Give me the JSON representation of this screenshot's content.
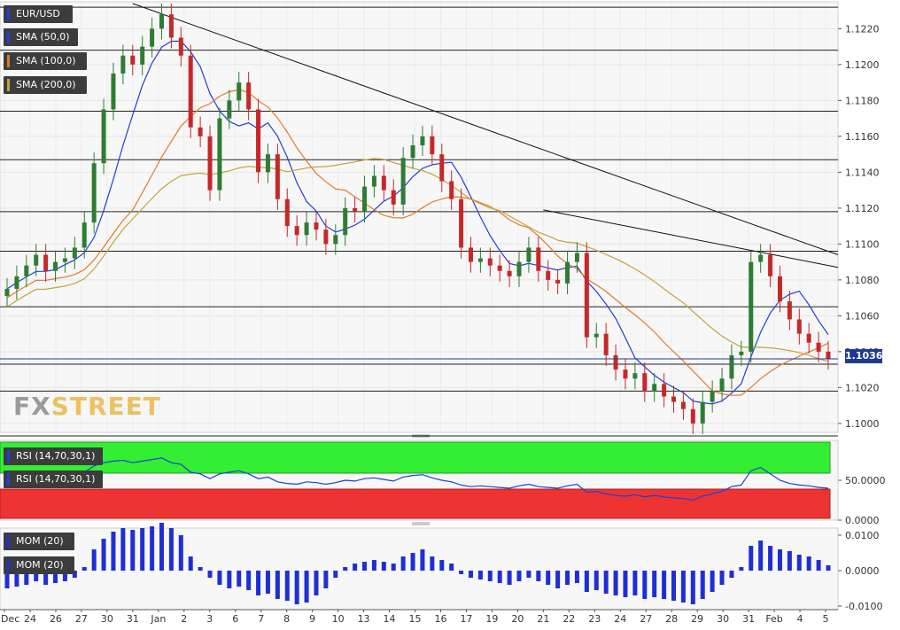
{
  "chart_data": [
    {
      "type": "candlestick",
      "symbol": "EUR/USD",
      "ylim": [
        1.0995,
        1.1235
      ],
      "y_ticks": [
        "1.1220",
        "1.1200",
        "1.1180",
        "1.1160",
        "1.1140",
        "1.1120",
        "1.1100",
        "1.1080",
        "1.1060",
        "1.1040",
        "1.1020",
        "1.1000"
      ],
      "current_price": "1.1036",
      "legend": [
        "EUR/USD",
        "SMA (50,0)",
        "SMA (100,0)",
        "SMA (200,0)"
      ],
      "x_labels": [
        "Dec",
        "24",
        "26",
        "27",
        "30",
        "31",
        "Jan",
        "2",
        "3",
        "6",
        "7",
        "8",
        "9",
        "10",
        "13",
        "14",
        "15",
        "16",
        "17",
        "19",
        "20",
        "21",
        "22",
        "23",
        "24",
        "27",
        "28",
        "29",
        "30",
        "31",
        "Feb",
        "4",
        "5"
      ],
      "horizontal_levels": [
        1.1232,
        1.1208,
        1.1174,
        1.1147,
        1.1118,
        1.1096,
        1.1065,
        1.1033,
        1.1018,
        1.0993
      ],
      "trendlines": [
        {
          "from": [
            "31 Jan",
            1.1234
          ],
          "to": [
            "5 Feb",
            1.1094
          ]
        },
        {
          "from": [
            "21",
            1.1119
          ],
          "to": [
            "5 Feb",
            1.1087
          ]
        }
      ],
      "closes": [
        1.1075,
        1.1082,
        1.1088,
        1.1094,
        1.1085,
        1.109,
        1.1092,
        1.1098,
        1.1112,
        1.1145,
        1.1175,
        1.1195,
        1.1205,
        1.12,
        1.121,
        1.122,
        1.1228,
        1.1215,
        1.1205,
        1.1165,
        1.116,
        1.113,
        1.117,
        1.118,
        1.119,
        1.1175,
        1.114,
        1.115,
        1.1125,
        1.111,
        1.1105,
        1.1112,
        1.1108,
        1.11,
        1.1105,
        1.112,
        1.1118,
        1.1132,
        1.1138,
        1.113,
        1.1122,
        1.1148,
        1.1155,
        1.116,
        1.115,
        1.1135,
        1.1125,
        1.1098,
        1.109,
        1.1092,
        1.1088,
        1.1085,
        1.1082,
        1.109,
        1.1098,
        1.1085,
        1.108,
        1.1078,
        1.109,
        1.1095,
        1.1048,
        1.105,
        1.1038,
        1.103,
        1.1025,
        1.1028,
        1.1018,
        1.1022,
        1.1015,
        1.1012,
        1.1008,
        1.1,
        1.1012,
        1.1018,
        1.1025,
        1.1038,
        1.104,
        1.109,
        1.1094,
        1.1082,
        1.1068,
        1.1058,
        1.105,
        1.1045,
        1.104,
        1.1036
      ]
    },
    {
      "type": "line",
      "indicator": "RSI (14,70,30,1)",
      "legend": [
        "RSI (14,70,30,1)",
        "RSI (14,70,30,1)"
      ],
      "ylim": [
        0,
        100
      ],
      "y_ticks": [
        "50.0000",
        "0.0000"
      ],
      "values": [
        45,
        47,
        49,
        52,
        48,
        50,
        51,
        55,
        60,
        68,
        72,
        74,
        75,
        72,
        74,
        76,
        78,
        72,
        70,
        60,
        58,
        52,
        58,
        60,
        62,
        58,
        52,
        54,
        48,
        46,
        45,
        48,
        47,
        45,
        47,
        50,
        49,
        52,
        53,
        51,
        49,
        54,
        56,
        57,
        53,
        50,
        48,
        44,
        42,
        43,
        42,
        41,
        40,
        43,
        45,
        42,
        41,
        40,
        43,
        45,
        35,
        36,
        33,
        31,
        30,
        32,
        29,
        31,
        29,
        28,
        27,
        25,
        30,
        33,
        36,
        42,
        44,
        62,
        66,
        58,
        50,
        46,
        44,
        43,
        41,
        40
      ]
    },
    {
      "type": "bar",
      "indicator": "MOM (20)",
      "legend": [
        "MOM (20)",
        "MOM (20)"
      ],
      "ylim": [
        -0.011,
        0.012
      ],
      "y_ticks": [
        "0.0100",
        "0.0000",
        "-0.0100"
      ],
      "values": [
        -0.005,
        -0.0045,
        -0.004,
        -0.003,
        -0.004,
        -0.0035,
        -0.003,
        -0.002,
        0.001,
        0.006,
        0.009,
        0.011,
        0.012,
        0.0115,
        0.012,
        0.0125,
        0.0135,
        0.012,
        0.01,
        0.004,
        0.001,
        -0.002,
        -0.004,
        -0.005,
        -0.0045,
        -0.0055,
        -0.007,
        -0.0065,
        -0.008,
        -0.0085,
        -0.0095,
        -0.009,
        -0.007,
        -0.005,
        -0.002,
        0.001,
        0.002,
        0.0025,
        0.003,
        0.0025,
        0.002,
        0.004,
        0.005,
        0.006,
        0.004,
        0.003,
        0.002,
        -0.001,
        -0.002,
        -0.0025,
        -0.003,
        -0.0035,
        -0.004,
        -0.003,
        -0.002,
        -0.003,
        -0.004,
        -0.005,
        -0.004,
        -0.0035,
        -0.006,
        -0.0055,
        -0.0065,
        -0.007,
        -0.0075,
        -0.007,
        -0.008,
        -0.0075,
        -0.008,
        -0.0085,
        -0.009,
        -0.0095,
        -0.008,
        -0.006,
        -0.004,
        -0.002,
        0.001,
        0.007,
        0.0085,
        0.007,
        0.006,
        0.0055,
        0.0045,
        0.004,
        0.003,
        0.0015
      ]
    }
  ],
  "brand": {
    "part1": "FX",
    "part2": "STREET"
  },
  "colors": {
    "sma50": "#1f3fd6",
    "sma100": "#e07a2a",
    "sma200": "#c2a43a",
    "bull": "#2e7d32",
    "bear": "#c62828",
    "rsi_overbought": "#33ee33",
    "rsi_oversold": "#ee3333",
    "mom": "#1f2fd6"
  }
}
